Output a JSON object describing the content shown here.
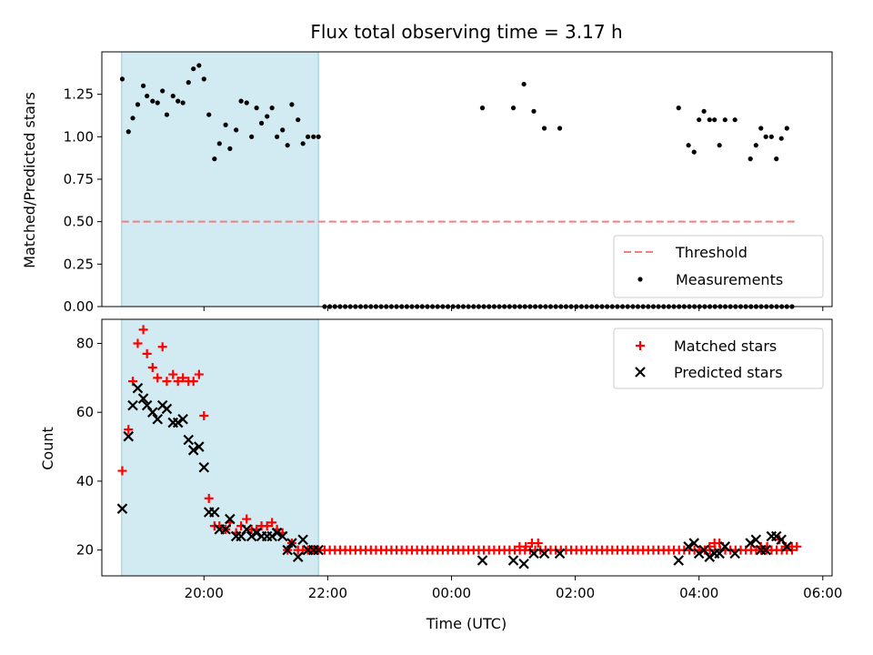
{
  "chart_data": {
    "title": "Flux total observing time = 3.17 h",
    "xlabel": "Time (UTC)",
    "x_ticks": [
      "20:00",
      "22:00",
      "00:00",
      "02:00",
      "04:00",
      "06:00"
    ],
    "x_tick_hours": [
      20,
      22,
      24,
      26,
      28,
      30
    ],
    "xlim_hours": [
      18.35,
      30.15
    ],
    "highlight_span_hours": [
      18.67,
      21.85
    ],
    "highlight_color": "#add8e6",
    "panels": [
      {
        "type": "scatter",
        "ylabel": "Matched/Predicted stars",
        "ylim": [
          0,
          1.5
        ],
        "yticks": [
          "0.00",
          "0.25",
          "0.50",
          "0.75",
          "1.00",
          "1.25"
        ],
        "ytick_values": [
          0,
          0.25,
          0.5,
          0.75,
          1.0,
          1.25
        ],
        "legend_position": "lower right",
        "threshold": {
          "name": "Threshold",
          "value": 0.5,
          "x_range": [
            18.67,
            29.6
          ],
          "color": "#f08080"
        },
        "measurements": {
          "name": "Measurements",
          "color": "#000000",
          "points": [
            [
              18.68,
              1.34
            ],
            [
              18.78,
              1.03
            ],
            [
              18.85,
              1.11
            ],
            [
              18.93,
              1.19
            ],
            [
              19.02,
              1.3
            ],
            [
              19.08,
              1.24
            ],
            [
              19.17,
              1.21
            ],
            [
              19.25,
              1.2
            ],
            [
              19.33,
              1.27
            ],
            [
              19.4,
              1.13
            ],
            [
              19.5,
              1.24
            ],
            [
              19.58,
              1.21
            ],
            [
              19.66,
              1.2
            ],
            [
              19.75,
              1.32
            ],
            [
              19.83,
              1.4
            ],
            [
              19.92,
              1.42
            ],
            [
              20.0,
              1.34
            ],
            [
              20.08,
              1.13
            ],
            [
              20.17,
              0.87
            ],
            [
              20.25,
              0.96
            ],
            [
              20.35,
              1.07
            ],
            [
              20.42,
              0.93
            ],
            [
              20.52,
              1.04
            ],
            [
              20.6,
              1.21
            ],
            [
              20.69,
              1.2
            ],
            [
              20.77,
              1.0
            ],
            [
              20.85,
              1.17
            ],
            [
              20.93,
              1.08
            ],
            [
              21.02,
              1.12
            ],
            [
              21.1,
              1.17
            ],
            [
              21.18,
              1.0
            ],
            [
              21.27,
              1.04
            ],
            [
              21.35,
              0.95
            ],
            [
              21.42,
              1.19
            ],
            [
              21.52,
              1.1
            ],
            [
              21.6,
              0.96
            ],
            [
              21.68,
              1.0
            ],
            [
              21.77,
              1.0
            ],
            [
              21.85,
              1.0
            ],
            [
              24.5,
              1.17
            ],
            [
              25.0,
              1.17
            ],
            [
              25.17,
              1.31
            ],
            [
              25.33,
              1.15
            ],
            [
              25.5,
              1.05
            ],
            [
              25.75,
              1.05
            ],
            [
              27.67,
              1.17
            ],
            [
              27.83,
              0.95
            ],
            [
              27.92,
              0.91
            ],
            [
              28.0,
              1.1
            ],
            [
              28.08,
              1.15
            ],
            [
              28.17,
              1.1
            ],
            [
              28.25,
              1.1
            ],
            [
              28.33,
              0.95
            ],
            [
              28.42,
              1.1
            ],
            [
              28.58,
              1.1
            ],
            [
              28.83,
              0.87
            ],
            [
              28.92,
              0.95
            ],
            [
              29.0,
              1.05
            ],
            [
              29.08,
              1.0
            ],
            [
              29.17,
              1.0
            ],
            [
              29.25,
              0.87
            ],
            [
              29.33,
              0.99
            ],
            [
              29.42,
              1.05
            ]
          ],
          "zero_points_range": [
            21.95,
            29.55
          ],
          "zero_points_step": 0.083
        }
      },
      {
        "type": "scatter",
        "ylabel": "Count",
        "ylim": [
          12.5,
          87
        ],
        "yticks": [
          "20",
          "40",
          "60",
          "80"
        ],
        "ytick_values": [
          20,
          40,
          60,
          80
        ],
        "legend_position": "upper right",
        "matched": {
          "name": "Matched stars",
          "color": "#ff0000",
          "points": [
            [
              18.68,
              43
            ],
            [
              18.78,
              55
            ],
            [
              18.85,
              69
            ],
            [
              18.93,
              80
            ],
            [
              19.02,
              84
            ],
            [
              19.08,
              77
            ],
            [
              19.17,
              73
            ],
            [
              19.25,
              70
            ],
            [
              19.33,
              79
            ],
            [
              19.4,
              69
            ],
            [
              19.5,
              71
            ],
            [
              19.58,
              69
            ],
            [
              19.66,
              70
            ],
            [
              19.75,
              69
            ],
            [
              19.83,
              69
            ],
            [
              19.92,
              71
            ],
            [
              20.0,
              59
            ],
            [
              20.08,
              35
            ],
            [
              20.17,
              27
            ],
            [
              20.25,
              27
            ],
            [
              20.35,
              26
            ],
            [
              20.42,
              28
            ],
            [
              20.52,
              25
            ],
            [
              20.6,
              27
            ],
            [
              20.69,
              29
            ],
            [
              20.77,
              26
            ],
            [
              20.85,
              26
            ],
            [
              20.93,
              27
            ],
            [
              21.02,
              27
            ],
            [
              21.1,
              28
            ],
            [
              21.18,
              26
            ],
            [
              21.27,
              25
            ],
            [
              21.35,
              20
            ],
            [
              21.42,
              22
            ],
            [
              21.52,
              20
            ],
            [
              21.6,
              20
            ],
            [
              21.68,
              20
            ],
            [
              21.77,
              20
            ],
            [
              21.85,
              20
            ],
            [
              25.1,
              21
            ],
            [
              25.2,
              21
            ],
            [
              25.3,
              22
            ],
            [
              25.4,
              22
            ],
            [
              28.17,
              21
            ],
            [
              28.25,
              22
            ],
            [
              28.33,
              22
            ],
            [
              29.0,
              21
            ],
            [
              29.1,
              21
            ],
            [
              29.3,
              23
            ],
            [
              29.4,
              21
            ],
            [
              29.5,
              21
            ],
            [
              29.58,
              21
            ]
          ],
          "baseline_value": 20,
          "baseline_range": [
            21.95,
            29.55
          ],
          "baseline_step": 0.083
        },
        "predicted": {
          "name": "Predicted stars",
          "color": "#000000",
          "points": [
            [
              18.68,
              32
            ],
            [
              18.78,
              53
            ],
            [
              18.85,
              62
            ],
            [
              18.93,
              67
            ],
            [
              19.02,
              64
            ],
            [
              19.08,
              62
            ],
            [
              19.17,
              60
            ],
            [
              19.25,
              58
            ],
            [
              19.33,
              62
            ],
            [
              19.4,
              61
            ],
            [
              19.5,
              57
            ],
            [
              19.58,
              57
            ],
            [
              19.66,
              58
            ],
            [
              19.75,
              52
            ],
            [
              19.83,
              49
            ],
            [
              19.92,
              50
            ],
            [
              20.0,
              44
            ],
            [
              20.08,
              31
            ],
            [
              20.17,
              31
            ],
            [
              20.25,
              26
            ],
            [
              20.35,
              26
            ],
            [
              20.42,
              29
            ],
            [
              20.52,
              24
            ],
            [
              20.6,
              24
            ],
            [
              20.69,
              26
            ],
            [
              20.77,
              24
            ],
            [
              20.85,
              25
            ],
            [
              20.93,
              24
            ],
            [
              21.02,
              24
            ],
            [
              21.1,
              24
            ],
            [
              21.18,
              25
            ],
            [
              21.27,
              24
            ],
            [
              21.35,
              20
            ],
            [
              21.42,
              22
            ],
            [
              21.52,
              18
            ],
            [
              21.6,
              23
            ],
            [
              21.68,
              20
            ],
            [
              21.77,
              20
            ],
            [
              21.85,
              20
            ],
            [
              24.5,
              17
            ],
            [
              25.0,
              17
            ],
            [
              25.17,
              16
            ],
            [
              25.33,
              19
            ],
            [
              25.5,
              19
            ],
            [
              25.75,
              19
            ],
            [
              27.67,
              17
            ],
            [
              27.83,
              21
            ],
            [
              27.92,
              22
            ],
            [
              28.0,
              19
            ],
            [
              28.08,
              20
            ],
            [
              28.17,
              18
            ],
            [
              28.25,
              19
            ],
            [
              28.33,
              19
            ],
            [
              28.42,
              21
            ],
            [
              28.58,
              19
            ],
            [
              28.83,
              22
            ],
            [
              28.92,
              23
            ],
            [
              29.0,
              20
            ],
            [
              29.08,
              20
            ],
            [
              29.17,
              24
            ],
            [
              29.25,
              24
            ],
            [
              29.33,
              23
            ],
            [
              29.42,
              21
            ]
          ]
        }
      }
    ]
  }
}
